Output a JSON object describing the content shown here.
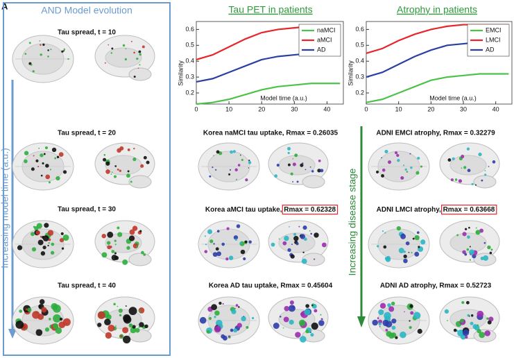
{
  "panel_label": "A",
  "model_panel": {
    "title": "AND Model evolution",
    "arrow_label": "Increasing model time (a.u.)",
    "captions": [
      {
        "text": "Tau spread, t = 10"
      },
      {
        "text": "Tau spread, t = 20"
      },
      {
        "text": "Tau spread, t = 30"
      },
      {
        "text": "Tau spread, t = 40"
      }
    ]
  },
  "tau_panel": {
    "captions": [
      {
        "text": "Korea naMCI tau uptake, Rmax = 0.26035"
      },
      {
        "text": "Korea aMCI tau uptake,",
        "highlight": "Rmax = 0.62328"
      },
      {
        "text": "Korea AD tau uptake, Rmax = 0.45604"
      }
    ]
  },
  "atrophy_panel": {
    "arrow_label": "Increasing disease stage",
    "captions": [
      {
        "text": "ADNI EMCI atrophy, Rmax = 0.32279"
      },
      {
        "text": "ADNI LMCI atrophy,",
        "highlight": "Rmax = 0.63668"
      },
      {
        "text": "ADNI AD atrophy, Rmax = 0.52723"
      }
    ]
  },
  "chart_data": [
    {
      "type": "line",
      "title": "Tau PET in patients",
      "xlabel": "Model time (a.u.)",
      "ylabel": "Similarity",
      "x": [
        0,
        5,
        10,
        15,
        20,
        25,
        30,
        35,
        40,
        44
      ],
      "series": [
        {
          "name": "naMCI",
          "color": "#4cc24a",
          "values": [
            0.13,
            0.14,
            0.16,
            0.19,
            0.22,
            0.24,
            0.25,
            0.26,
            0.26,
            0.26
          ]
        },
        {
          "name": "aMCI",
          "color": "#e8242a",
          "values": [
            0.41,
            0.44,
            0.49,
            0.54,
            0.58,
            0.6,
            0.61,
            0.62,
            0.62,
            0.62
          ]
        },
        {
          "name": "AD",
          "color": "#2b3fa0",
          "values": [
            0.27,
            0.29,
            0.33,
            0.37,
            0.41,
            0.43,
            0.44,
            0.45,
            0.45,
            0.45
          ]
        }
      ],
      "xlim": [
        0,
        45
      ],
      "ylim": [
        0.13,
        0.65
      ],
      "xticks": [
        0,
        10,
        20,
        30,
        40
      ],
      "yticks": [
        0.2,
        0.3,
        0.4,
        0.5,
        0.6
      ],
      "legend": "upper right"
    },
    {
      "type": "line",
      "title": "Atrophy in patients",
      "xlabel": "Model time (a.u.)",
      "ylabel": "Similarity",
      "x": [
        0,
        5,
        10,
        15,
        20,
        25,
        30,
        35,
        40,
        44
      ],
      "series": [
        {
          "name": "EMCI",
          "color": "#4cc24a",
          "values": [
            0.14,
            0.16,
            0.2,
            0.24,
            0.28,
            0.3,
            0.31,
            0.32,
            0.32,
            0.32
          ]
        },
        {
          "name": "LMCI",
          "color": "#e8242a",
          "values": [
            0.45,
            0.48,
            0.53,
            0.57,
            0.6,
            0.62,
            0.63,
            0.63,
            0.63,
            0.63
          ]
        },
        {
          "name": "AD",
          "color": "#2b3fa0",
          "values": [
            0.3,
            0.33,
            0.38,
            0.43,
            0.47,
            0.5,
            0.51,
            0.52,
            0.52,
            0.52
          ]
        }
      ],
      "xlim": [
        0,
        45
      ],
      "ylim": [
        0.13,
        0.65
      ],
      "xticks": [
        0,
        10,
        20,
        30,
        40
      ],
      "yticks": [
        0.2,
        0.3,
        0.4,
        0.5,
        0.6
      ],
      "legend": "upper right"
    }
  ]
}
